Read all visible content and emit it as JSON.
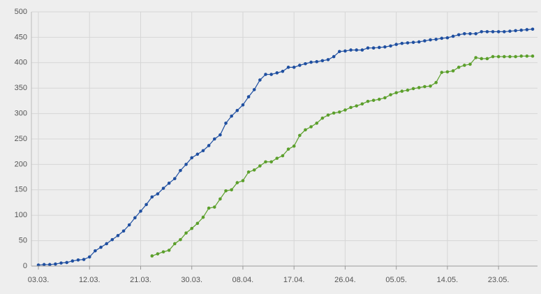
{
  "chart_data": {
    "type": "line",
    "categories": [
      "03.03.",
      null,
      null,
      null,
      null,
      null,
      null,
      null,
      null,
      "12.03.",
      null,
      null,
      null,
      null,
      null,
      null,
      null,
      null,
      "21.03.",
      null,
      null,
      null,
      null,
      null,
      null,
      null,
      null,
      "30.03.",
      null,
      null,
      null,
      null,
      null,
      null,
      null,
      null,
      "08.04.",
      null,
      null,
      null,
      null,
      null,
      null,
      null,
      null,
      "17.04.",
      null,
      null,
      null,
      null,
      null,
      null,
      null,
      null,
      "26.04.",
      null,
      null,
      null,
      null,
      null,
      null,
      null,
      null,
      "05.05.",
      null,
      null,
      null,
      null,
      null,
      null,
      null,
      null,
      "14.05.",
      null,
      null,
      null,
      null,
      null,
      null,
      null,
      null,
      "23.05.",
      null,
      null,
      null,
      null,
      null,
      null
    ],
    "series": [
      {
        "color": "#1f4fa0",
        "values": [
          2,
          3,
          3,
          4,
          6,
          7,
          10,
          12,
          13,
          18,
          30,
          37,
          44,
          52,
          60,
          69,
          81,
          95,
          108,
          121,
          136,
          142,
          153,
          163,
          172,
          188,
          200,
          213,
          220,
          227,
          237,
          250,
          258,
          281,
          295,
          306,
          317,
          333,
          347,
          366,
          377,
          377,
          380,
          383,
          391,
          391,
          395,
          398,
          401,
          402,
          404,
          406,
          412,
          422,
          423,
          425,
          425,
          425,
          429,
          429,
          430,
          431,
          433,
          436,
          438,
          439,
          440,
          441,
          443,
          445,
          446,
          448,
          449,
          452,
          455,
          457,
          457,
          457,
          461,
          461,
          461,
          461,
          461,
          462,
          463,
          464,
          465,
          466
        ]
      },
      {
        "color": "#5b9f2b",
        "values": [
          null,
          null,
          null,
          null,
          null,
          null,
          null,
          null,
          null,
          null,
          null,
          null,
          null,
          null,
          null,
          null,
          null,
          null,
          null,
          null,
          20,
          24,
          28,
          31,
          44,
          52,
          65,
          74,
          84,
          96,
          114,
          116,
          132,
          148,
          150,
          164,
          168,
          185,
          189,
          197,
          205,
          205,
          212,
          217,
          230,
          236,
          257,
          268,
          274,
          281,
          291,
          297,
          301,
          303,
          307,
          312,
          315,
          319,
          324,
          326,
          328,
          331,
          337,
          341,
          344,
          346,
          349,
          351,
          353,
          354,
          361,
          381,
          382,
          384,
          391,
          395,
          397,
          410,
          408,
          408,
          412,
          412,
          412,
          412,
          412,
          413,
          413,
          413
        ]
      }
    ],
    "ylim": [
      0,
      500
    ],
    "yticks": [
      0,
      50,
      100,
      150,
      200,
      250,
      300,
      350,
      400,
      450,
      500
    ],
    "grid": true
  }
}
